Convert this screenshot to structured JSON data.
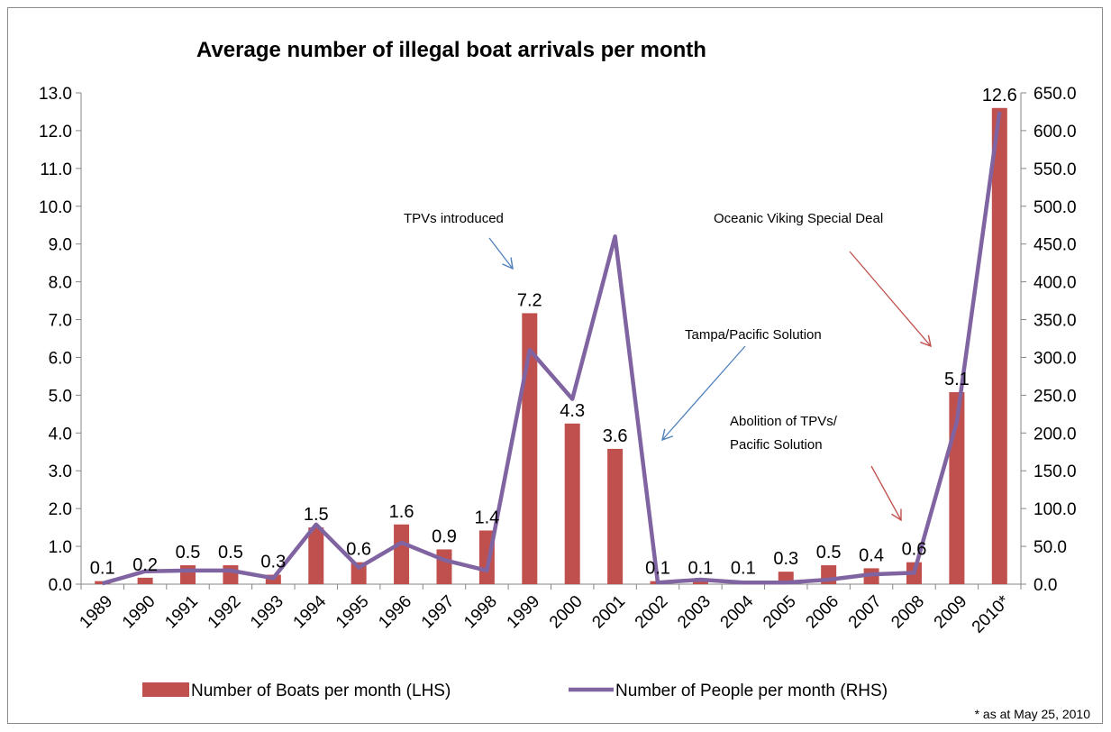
{
  "chart_data": {
    "type": "bar",
    "title": "Average number of illegal boat arrivals per month",
    "categories": [
      "1989",
      "1990",
      "1991",
      "1992",
      "1993",
      "1994",
      "1995",
      "1996",
      "1997",
      "1998",
      "1999",
      "2000",
      "2001",
      "2002",
      "2003",
      "2004",
      "2005",
      "2006",
      "2007",
      "2008",
      "2009",
      "2010*"
    ],
    "series": [
      {
        "name": "Number of Boats per month  (LHS)",
        "type": "bar",
        "axis": "left",
        "color": "#c0504d",
        "values": [
          0.08,
          0.17,
          0.5,
          0.5,
          0.25,
          1.5,
          0.58,
          1.58,
          0.92,
          1.42,
          7.17,
          4.25,
          3.58,
          0.08,
          0.08,
          0.08,
          0.33,
          0.5,
          0.42,
          0.58,
          5.08,
          12.6
        ],
        "data_labels": [
          "0.1",
          "0.2",
          "0.5",
          "0.5",
          "0.3",
          "1.5",
          "0.6",
          "1.6",
          "0.9",
          "1.4",
          "7.2",
          "4.3",
          "3.6",
          "0.1",
          "0.1",
          "0.1",
          "0.3",
          "0.5",
          "0.4",
          "0.6",
          "5.1",
          "12.6"
        ]
      },
      {
        "name": "Number of People per month (RHS)",
        "type": "line",
        "axis": "right",
        "color": "#8064a2",
        "values": [
          1,
          17,
          18,
          18,
          8,
          79,
          22,
          55,
          32,
          18,
          310,
          245,
          460,
          2,
          6,
          2,
          2,
          6,
          13,
          15,
          215,
          625
        ]
      }
    ],
    "y_left": {
      "min": 0,
      "max": 13,
      "step": 1,
      "ticks": [
        "0.0",
        "1.0",
        "2.0",
        "3.0",
        "4.0",
        "5.0",
        "6.0",
        "7.0",
        "8.0",
        "9.0",
        "10.0",
        "11.0",
        "12.0",
        "13.0"
      ]
    },
    "y_right": {
      "min": 0,
      "max": 650,
      "step": 50,
      "ticks": [
        "0.0",
        "50.0",
        "100.0",
        "150.0",
        "200.0",
        "250.0",
        "300.0",
        "350.0",
        "400.0",
        "450.0",
        "500.0",
        "550.0",
        "600.0",
        "650.0"
      ]
    },
    "annotations": [
      {
        "text": "TPVs introduced",
        "arrow_color": "#4f81bd"
      },
      {
        "text": "Tampa/Pacific Solution",
        "arrow_color": "#4f81bd"
      },
      {
        "text": "Oceanic Viking Special Deal",
        "arrow_color": "#c0504d"
      },
      {
        "text": "Abolition of TPVs/",
        "arrow_color": "#c0504d"
      },
      {
        "text": "Pacific Solution",
        "arrow_color": "#c0504d"
      }
    ],
    "legend_position": "bottom",
    "footnote": "* as at May 25, 2010",
    "grid": false
  }
}
